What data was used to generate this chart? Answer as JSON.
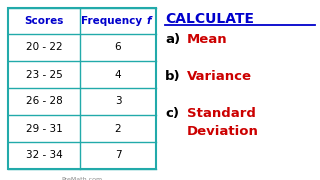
{
  "scores": [
    "20 - 22",
    "23 - 25",
    "26 - 28",
    "29 - 31",
    "32 - 34"
  ],
  "frequencies": [
    "6",
    "4",
    "3",
    "2",
    "7"
  ],
  "header_color": "#0000CC",
  "data_text_color": "#000000",
  "table_border_color": "#22AAAA",
  "table_bg": "#FFFFFF",
  "calc_title": "CALCULATE",
  "calc_title_color": "#0000CC",
  "items_prefix": [
    "a)",
    "b)",
    "c)"
  ],
  "items_label_line1": [
    "Mean",
    "Variance",
    "Standard"
  ],
  "items_label_line2": [
    "",
    "",
    "Deviation"
  ],
  "item_prefix_color": "#000000",
  "item_label_color": "#CC0000",
  "bg_color": "#FFFFFF",
  "premath_text": "PreMath.com",
  "premath_color": "#888888"
}
